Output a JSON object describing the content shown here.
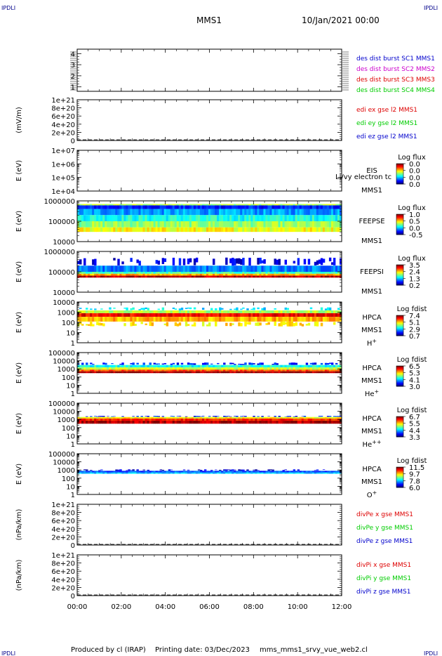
{
  "header": {
    "corner_tl": "IPDLI",
    "corner_tr": "IPDLI",
    "corner_bl": "IPDLI",
    "corner_br": "IPDLI",
    "title": "MMS1",
    "datetime": "10/Jan/2021 00:00"
  },
  "footer": {
    "produced": "Produced by cl (IRAP)",
    "printing": "Printing date: 03/Dec/2023",
    "script": "mms_mms1_srvy_vue_web2.cl"
  },
  "colors": {
    "blue": "#0000cc",
    "red": "#dd0000",
    "green": "#00cc00",
    "magenta": "#cc00cc"
  },
  "chart_data": [
    {
      "type": "line",
      "panel": "burst-intervals",
      "ylabel": "",
      "yticks": [
        "4",
        "3",
        "2",
        "1"
      ],
      "ylim": [
        0.6,
        4.4
      ],
      "legend_right": [
        {
          "text": "des dist burst SC1 MMS1",
          "color": "#0000cc"
        },
        {
          "text": "des dist burst SC2 MMS2",
          "color": "#cc00cc"
        },
        {
          "text": "des dist burst SC3 MMS3",
          "color": "#dd0000"
        },
        {
          "text": "des dist burst SC4 MMS4",
          "color": "#00cc00"
        }
      ],
      "series": []
    },
    {
      "type": "line",
      "panel": "edi-e-field",
      "ylabel": "(mV/m)",
      "yticks": [
        "1e+21",
        "8e+20",
        "6e+20",
        "4e+20",
        "2e+20",
        "0"
      ],
      "ylim": [
        0,
        1e+21
      ],
      "legend_right": [
        {
          "text": "edi ex gse l2 MMS1",
          "color": "#dd0000"
        },
        {
          "text": "edi ey gse l2 MMS1",
          "color": "#00cc00"
        },
        {
          "text": "edi ez gse l2 MMS1",
          "color": "#0000cc"
        }
      ],
      "zero_line": true
    },
    {
      "type": "heatmap",
      "panel": "eis",
      "ylabel": "E (eV)",
      "yticks": [
        "1e+07",
        "1e+06",
        "1e+05",
        "1e+04"
      ],
      "ylim": [
        10000.0,
        10000000.0
      ],
      "ylog": true,
      "instrument": [
        "EIS",
        "MMS1"
      ],
      "overlay_label": "Ll/vy electron tc",
      "colorbar": {
        "title": "Log flux",
        "ticks": [
          "0.0",
          "0.0",
          "0.0",
          "0.0"
        ]
      },
      "bands": []
    },
    {
      "type": "heatmap",
      "panel": "feepse",
      "ylabel": "E (eV)",
      "yticks": [
        "1000000",
        "100000",
        "10000"
      ],
      "ylim": [
        10000.0,
        1000000.0
      ],
      "ylog": true,
      "instrument": [
        "FEEPSE",
        "MMS1"
      ],
      "colorbar": {
        "title": "Log flux",
        "ticks": [
          "1.0",
          "0.5",
          "0.0",
          "-0.5"
        ]
      },
      "bands": [
        {
          "e_top": 700000,
          "e_bot": 600000,
          "level": 0.55
        },
        {
          "e_top": 600000,
          "e_bot": 400000,
          "level": 0.15
        },
        {
          "e_top": 400000,
          "e_bot": 200000,
          "level": 0.28
        },
        {
          "e_top": 200000,
          "e_bot": 100000,
          "level": 0.4
        },
        {
          "e_top": 100000,
          "e_bot": 50000,
          "level": 0.52
        },
        {
          "e_top": 50000,
          "e_bot": 30000,
          "level": 0.62
        }
      ]
    },
    {
      "type": "heatmap",
      "panel": "feepsi",
      "ylabel": "E (eV)",
      "yticks": [
        "1000000",
        "100000",
        "10000"
      ],
      "ylim": [
        10000.0,
        1000000.0
      ],
      "ylog": true,
      "instrument": [
        "FEEPSI",
        "MMS1"
      ],
      "colorbar": {
        "title": "Log flux",
        "ticks": [
          "3.5",
          "2.4",
          "1.3",
          "0.2"
        ]
      },
      "bands": [
        {
          "e_top": 500000,
          "e_bot": 200000,
          "level": 0.1,
          "sparse": true
        },
        {
          "e_top": 200000,
          "e_bot": 100000,
          "level": 0.25
        },
        {
          "e_top": 100000,
          "e_bot": 80000,
          "level": 0.45
        },
        {
          "e_top": 80000,
          "e_bot": 65000,
          "level": 0.7
        },
        {
          "e_top": 65000,
          "e_bot": 52000,
          "level": 0.95
        }
      ]
    },
    {
      "type": "heatmap",
      "panel": "hpca-h",
      "ylabel": "E (eV)",
      "yticks": [
        "10000",
        "1000",
        "100",
        "10",
        "1"
      ],
      "ylim": [
        1,
        10000.0
      ],
      "ylog": true,
      "instrument": [
        "HPCA",
        "MMS1"
      ],
      "species": "H",
      "species_sup": "+",
      "colorbar": {
        "title": "Log fdist",
        "ticks": [
          "7.4",
          "5.1",
          "2.9",
          "0.7"
        ]
      },
      "bands": [
        {
          "e_top": 3000,
          "e_bot": 1500,
          "level": 0.35,
          "sparse": true
        },
        {
          "e_top": 1500,
          "e_bot": 800,
          "level": 0.55
        },
        {
          "e_top": 800,
          "e_bot": 350,
          "level": 0.88
        },
        {
          "e_top": 350,
          "e_bot": 120,
          "level": 0.7
        },
        {
          "e_top": 120,
          "e_bot": 40,
          "level": 0.65,
          "sparse": true
        }
      ]
    },
    {
      "type": "heatmap",
      "panel": "hpca-he",
      "ylabel": "E (eV)",
      "yticks": [
        "100000",
        "10000",
        "1000",
        "100",
        "10",
        "1"
      ],
      "ylim": [
        1,
        100000.0
      ],
      "ylog": true,
      "instrument": [
        "HPCA",
        "MMS1"
      ],
      "species": "He",
      "species_sup": "+",
      "colorbar": {
        "title": "Log fdist",
        "ticks": [
          "6.5",
          "5.3",
          "4.1",
          "3.0"
        ]
      },
      "bands": [
        {
          "e_top": 6000,
          "e_bot": 3000,
          "level": 0.15,
          "sparse": true
        },
        {
          "e_top": 3000,
          "e_bot": 1500,
          "level": 0.4
        },
        {
          "e_top": 1500,
          "e_bot": 800,
          "level": 0.58
        },
        {
          "e_top": 800,
          "e_bot": 500,
          "level": 0.8
        },
        {
          "e_top": 500,
          "e_bot": 300,
          "level": 0.97
        }
      ]
    },
    {
      "type": "heatmap",
      "panel": "hpca-hepp",
      "ylabel": "E (eV)",
      "yticks": [
        "100000",
        "10000",
        "1000",
        "100",
        "10",
        "1"
      ],
      "ylim": [
        1,
        100000.0
      ],
      "ylog": true,
      "instrument": [
        "HPCA",
        "MMS1"
      ],
      "species": "He",
      "species_sup": "++",
      "colorbar": {
        "title": "Log fdist",
        "ticks": [
          "6.7",
          "5.5",
          "4.4",
          "3.3"
        ]
      },
      "bands": [
        {
          "e_top": 2800,
          "e_bot": 2000,
          "level": 0.15,
          "sparse": true
        },
        {
          "e_top": 2000,
          "e_bot": 1300,
          "level": 0.62
        },
        {
          "e_top": 1300,
          "e_bot": 700,
          "level": 0.85
        },
        {
          "e_top": 700,
          "e_bot": 300,
          "level": 0.95
        }
      ]
    },
    {
      "type": "heatmap",
      "panel": "hpca-o",
      "ylabel": "E (eV)",
      "yticks": [
        "100000",
        "10000",
        "1000",
        "100",
        "10",
        "1"
      ],
      "ylim": [
        1,
        100000.0
      ],
      "ylog": true,
      "instrument": [
        "HPCA",
        "MMS1"
      ],
      "species": "O",
      "species_sup": "+",
      "colorbar": {
        "title": "Log fdist",
        "ticks": [
          "11.5",
          "9.7",
          "7.8",
          "6.0"
        ]
      },
      "bands": [
        {
          "e_top": 1200,
          "e_bot": 800,
          "level": 0.08,
          "sparse": true
        },
        {
          "e_top": 800,
          "e_bot": 500,
          "level": 0.2
        },
        {
          "e_top": 500,
          "e_bot": 350,
          "level": 0.32
        }
      ]
    },
    {
      "type": "line",
      "panel": "divpe",
      "ylabel": "(nPa/km)",
      "yticks": [
        "1e+21",
        "8e+20",
        "6e+20",
        "4e+20",
        "2e+20",
        "0"
      ],
      "ylim": [
        0,
        1e+21
      ],
      "legend_right": [
        {
          "text": "divPe x gse MMS1",
          "color": "#dd0000"
        },
        {
          "text": "divPe y gse MMS1",
          "color": "#00cc00"
        },
        {
          "text": "divPe z gse MMS1",
          "color": "#0000cc"
        }
      ],
      "zero_line": true
    },
    {
      "type": "line",
      "panel": "divpi",
      "ylabel": "(nPa/km)",
      "yticks": [
        "1e+21",
        "8e+20",
        "6e+20",
        "4e+20",
        "2e+20",
        "0"
      ],
      "ylim": [
        0,
        1e+21
      ],
      "legend_right": [
        {
          "text": "divPi x gse MMS1",
          "color": "#dd0000"
        },
        {
          "text": "divPi y gse MMS1",
          "color": "#00cc00"
        },
        {
          "text": "divPi z gse MMS1",
          "color": "#0000cc"
        }
      ],
      "zero_line": true
    }
  ],
  "xaxis": {
    "ticks": [
      "00:00",
      "02:00",
      "04:00",
      "06:00",
      "08:00",
      "10:00",
      "12:00"
    ]
  }
}
